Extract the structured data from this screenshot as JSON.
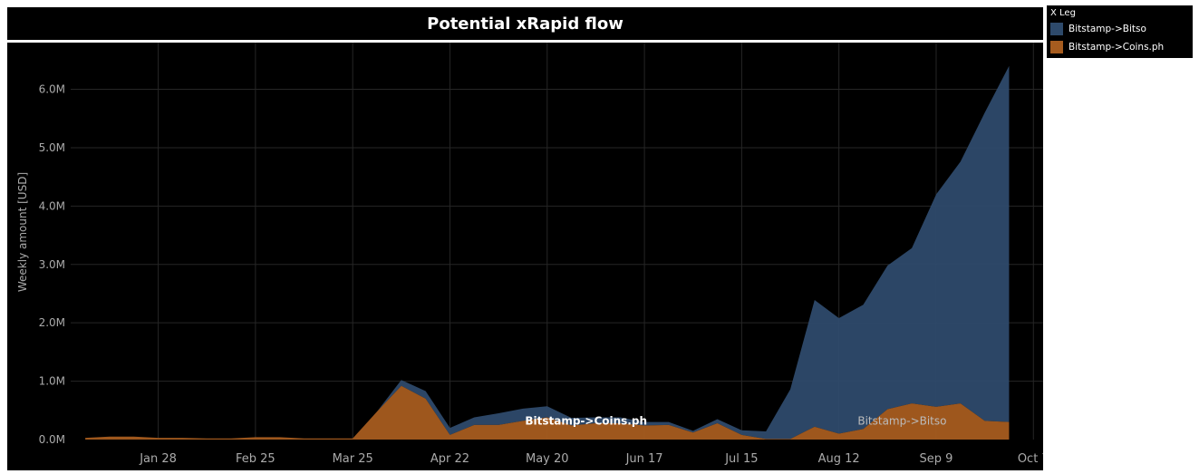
{
  "chart_data": {
    "type": "area",
    "stacked": true,
    "title": "Potential xRapid flow",
    "ylabel": "Weekly amount [USD]",
    "xlabel": "",
    "ylim": [
      0,
      6800000
    ],
    "y_ticks": [
      0,
      1000000,
      2000000,
      3000000,
      4000000,
      5000000,
      6000000
    ],
    "y_tick_labels": [
      "0.0M",
      "1.0M",
      "2.0M",
      "3.0M",
      "4.0M",
      "5.0M",
      "6.0M"
    ],
    "x_tick_labels": [
      "Jan 28",
      "Feb 25",
      "Mar 25",
      "Apr 22",
      "May 20",
      "Jun 17",
      "Jul 15",
      "Aug 12",
      "Sep 9",
      "Oct 7"
    ],
    "x_tick_index": [
      3,
      7,
      11,
      15,
      19,
      23,
      27,
      31,
      35,
      39
    ],
    "x_range_index": [
      -0.6,
      39.4
    ],
    "x": [
      "Jan 7",
      "Jan 14",
      "Jan 21",
      "Jan 28",
      "Feb 4",
      "Feb 11",
      "Feb 18",
      "Feb 25",
      "Mar 4",
      "Mar 11",
      "Mar 18",
      "Mar 25",
      "Apr 1",
      "Apr 8",
      "Apr 15",
      "Apr 22",
      "Apr 29",
      "May 6",
      "May 13",
      "May 20",
      "May 27",
      "Jun 3",
      "Jun 10",
      "Jun 17",
      "Jun 24",
      "Jul 1",
      "Jul 8",
      "Jul 15",
      "Jul 22",
      "Jul 29",
      "Aug 5",
      "Aug 12",
      "Aug 19",
      "Aug 26",
      "Sep 2",
      "Sep 9",
      "Sep 16",
      "Sep 23",
      "Sep 30"
    ],
    "series": [
      {
        "name": "Bitstamp->Coins.ph",
        "color": "#a65c1f",
        "values": [
          30000,
          50000,
          50000,
          30000,
          30000,
          20000,
          20000,
          40000,
          40000,
          20000,
          20000,
          20000,
          480000,
          920000,
          700000,
          80000,
          250000,
          250000,
          320000,
          380000,
          240000,
          280000,
          280000,
          240000,
          250000,
          120000,
          280000,
          80000,
          10000,
          10000,
          220000,
          100000,
          180000,
          520000,
          620000,
          560000,
          620000,
          320000,
          300000
        ]
      },
      {
        "name": "Bitstamp->Bitso",
        "color": "#2e4a6b",
        "values": [
          0,
          0,
          0,
          0,
          0,
          0,
          0,
          0,
          0,
          0,
          0,
          0,
          0,
          100000,
          130000,
          120000,
          130000,
          200000,
          210000,
          190000,
          130000,
          100000,
          100000,
          60000,
          50000,
          30000,
          70000,
          80000,
          130000,
          850000,
          2170000,
          1980000,
          2130000,
          2460000,
          2660000,
          3640000,
          4140000,
          5280000,
          6100000
        ]
      }
    ],
    "area_labels": [
      "Bitstamp->Coins.ph",
      "Bitstamp->Bitso"
    ],
    "legend": {
      "title": "X Leg",
      "position": "top-right",
      "entries": [
        "Bitstamp->Bitso",
        "Bitstamp->Coins.ph"
      ]
    },
    "grid": true
  },
  "colors": {
    "background": "#000000",
    "grid": "#222222",
    "axis_text": "#aaaaaa",
    "bitso": "#2e4a6b",
    "coinsph": "#a65c1f"
  }
}
